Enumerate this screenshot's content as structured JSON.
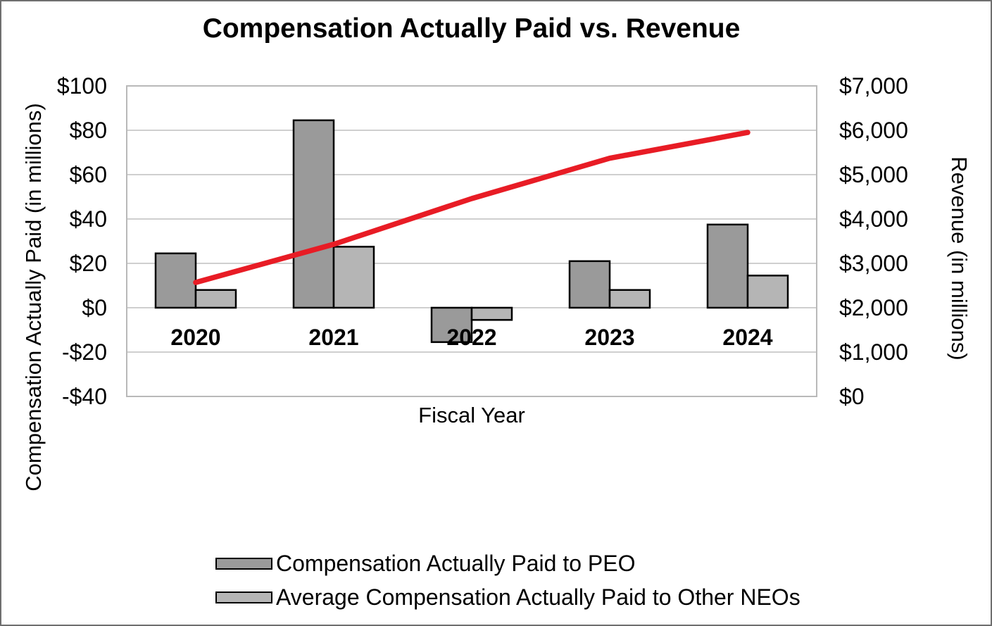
{
  "colors": {
    "peo_bar": "#9a9a9a",
    "neo_bar": "#b5b5b5",
    "bar_outline": "#000000",
    "revenue_line": "#e81c25",
    "gridline": "#cfcfcf",
    "plot_border": "#b9b9b9",
    "canvas_border": "#6f6f6f",
    "text": "#000000"
  },
  "chart_data": {
    "type": "combo",
    "title": "Compensation Actually Paid vs. Revenue",
    "xlabel": "Fiscal Year",
    "ylabel_left": "Compensation Actually Paid (in millions)",
    "ylabel_right": "Revenue (in millions)",
    "categories": [
      "2020",
      "2021",
      "2022",
      "2023",
      "2024"
    ],
    "series": [
      {
        "name": "Compensation Actually Paid to PEO",
        "type": "bar",
        "axis": "left",
        "values": [
          24.5,
          84.5,
          -15.5,
          21,
          37.5
        ]
      },
      {
        "name": "Average Compensation Actually Paid to Other NEOs",
        "type": "bar",
        "axis": "left",
        "values": [
          8,
          27.5,
          -5.5,
          8,
          14.5
        ]
      },
      {
        "name": "Revenue",
        "type": "line",
        "axis": "right",
        "values": [
          2570,
          3430,
          4460,
          5370,
          5950
        ]
      }
    ],
    "ylim_left": [
      -40,
      100
    ],
    "ylim_right": [
      0,
      7000
    ],
    "yticks_left": [
      "$100",
      "$80",
      "$60",
      "$40",
      "$20",
      "$0",
      "-$20",
      "-$40"
    ],
    "yticks_right": [
      "$7,000",
      "$6,000",
      "$5,000",
      "$4,000",
      "$3,000",
      "$2,000",
      "$1,000",
      "$0"
    ],
    "grid": true,
    "legend_position": "bottom-left"
  }
}
